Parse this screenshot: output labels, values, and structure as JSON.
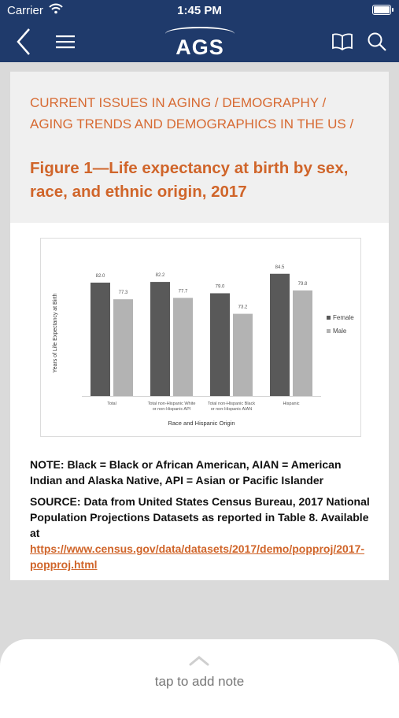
{
  "status_bar": {
    "carrier": "Carrier",
    "time": "1:45 PM"
  },
  "nav": {
    "logo_text": "AGS"
  },
  "breadcrumb": "CURRENT ISSUES IN AGING / DEMOGRAPHY / AGING TRENDS AND DEMOGRAPHICS IN THE US /",
  "figure_title": "Figure 1—Life expectancy at birth by sex, race, and ethnic origin, 2017",
  "chart_data": {
    "type": "bar",
    "categories": [
      "Total",
      "Total non-Hispanic White or non-Hispanic API",
      "Total non-Hispanic Black or non-Hispanic AIAN",
      "Hispanic"
    ],
    "category_lines": [
      [
        "Total"
      ],
      [
        "Total non-Hispanic White",
        "or non-Hispanic API"
      ],
      [
        "Total non-Hispanic Black",
        "or non-Hispanic AIAN"
      ],
      [
        "Hispanic"
      ]
    ],
    "series": [
      {
        "name": "Female",
        "values": [
          82.0,
          82.2,
          79.0,
          84.5
        ],
        "labels": [
          "82.0",
          "82.2",
          "79.0",
          "84.5"
        ],
        "color": "#595959"
      },
      {
        "name": "Male",
        "values": [
          77.3,
          77.7,
          73.2,
          79.8
        ],
        "labels": [
          "77.3",
          "77.7",
          "73.2",
          "79.8"
        ],
        "color": "#b3b3b3"
      }
    ],
    "xlabel": "Race and Hispanic Origin",
    "ylabel": "Years of Life Expectancy at Birth",
    "ylim": [
      50,
      90
    ],
    "grid": false,
    "legend_position": "right"
  },
  "note": "NOTE: Black = Black or African American, AIAN = American Indian and Alaska Native, API = Asian or Pacific Islander",
  "source": {
    "prefix": "SOURCE: Data from United States Census Bureau, 2017 National Population Projections Datasets as reported in Table 8. Available at ",
    "link_text": "https://www.census.gov/data/datasets/2017/demo/popproj/2017-popproj.html"
  },
  "bottom_sheet": {
    "hint": "tap to add note"
  },
  "colors": {
    "nav_bg": "#1f3a6b",
    "accent": "#d0652a",
    "female_bar": "#595959",
    "male_bar": "#b3b3b3"
  },
  "icons": [
    "wifi-icon",
    "battery-icon",
    "back-chevron-icon",
    "menu-icon",
    "book-icon",
    "search-icon",
    "chevron-up-icon"
  ]
}
